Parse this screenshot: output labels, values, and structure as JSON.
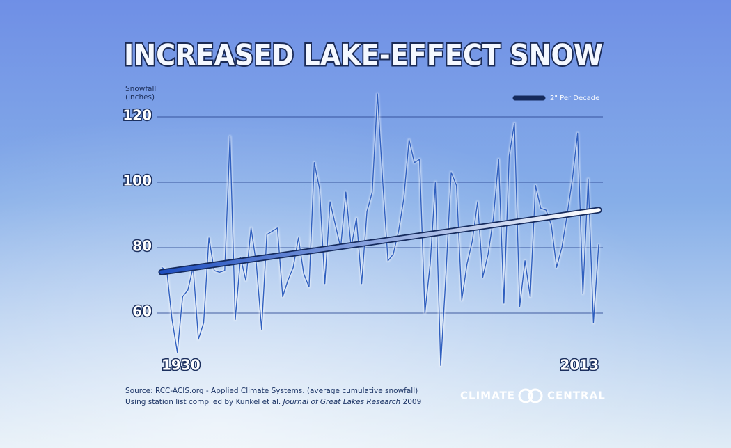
{
  "chart_data": {
    "type": "line",
    "title": "INCREASED LAKE-EFFECT SNOW",
    "ylabel": [
      "Snowfall",
      "(inches)"
    ],
    "x": [
      1930,
      1931,
      1932,
      1933,
      1934,
      1935,
      1936,
      1937,
      1938,
      1939,
      1940,
      1941,
      1942,
      1943,
      1944,
      1945,
      1946,
      1947,
      1948,
      1949,
      1950,
      1951,
      1952,
      1953,
      1954,
      1955,
      1956,
      1957,
      1958,
      1959,
      1960,
      1961,
      1962,
      1963,
      1964,
      1965,
      1966,
      1967,
      1968,
      1969,
      1970,
      1971,
      1972,
      1973,
      1974,
      1975,
      1976,
      1977,
      1978,
      1979,
      1980,
      1981,
      1982,
      1983,
      1984,
      1985,
      1986,
      1987,
      1988,
      1989,
      1990,
      1991,
      1992,
      1993,
      1994,
      1995,
      1996,
      1997,
      1998,
      1999,
      2000,
      2001,
      2002,
      2003,
      2004,
      2005,
      2006,
      2007,
      2008,
      2009,
      2010,
      2011,
      2012,
      2013
    ],
    "series": [
      {
        "color": "#2f5fbf",
        "values": [
          74,
          73,
          58,
          48,
          65,
          67,
          74,
          52,
          57,
          83,
          73,
          72.5,
          73,
          114,
          58,
          77,
          70,
          86,
          75,
          55,
          84,
          85,
          86,
          65,
          70,
          74,
          83,
          72,
          68,
          106,
          98,
          69,
          94,
          87,
          80,
          97,
          80,
          89,
          69,
          91,
          97,
          127,
          100,
          76,
          78,
          85,
          95,
          113,
          106,
          107,
          60,
          75,
          100,
          44,
          72,
          103,
          99,
          64,
          75,
          82,
          94,
          71,
          78,
          89,
          107,
          63,
          108,
          118,
          62,
          76,
          65,
          99,
          92,
          91.5,
          87,
          74,
          80,
          90,
          101,
          115,
          66,
          101,
          57,
          81
        ]
      }
    ],
    "trend": {
      "name": "2\" Per Decade",
      "x": [
        1930,
        2013
      ],
      "values": [
        72.5,
        91.5
      ]
    },
    "xlim": [
      1930,
      2013
    ],
    "xticks": [
      1930,
      2013
    ],
    "ylim": [
      44,
      127
    ],
    "yticks": [
      60,
      80,
      100,
      120
    ],
    "grid": true,
    "legend": "top-right",
    "source": [
      "Source: RCC-ACIS.org - Applied Climate Systems. (average cumulative snowfall)",
      "Using station list compiled by Kunkel et al. ",
      "Journal  of Great Lakes Research",
      " 2009"
    ],
    "logo": [
      "CLIMATE",
      "CENTRAL"
    ]
  }
}
